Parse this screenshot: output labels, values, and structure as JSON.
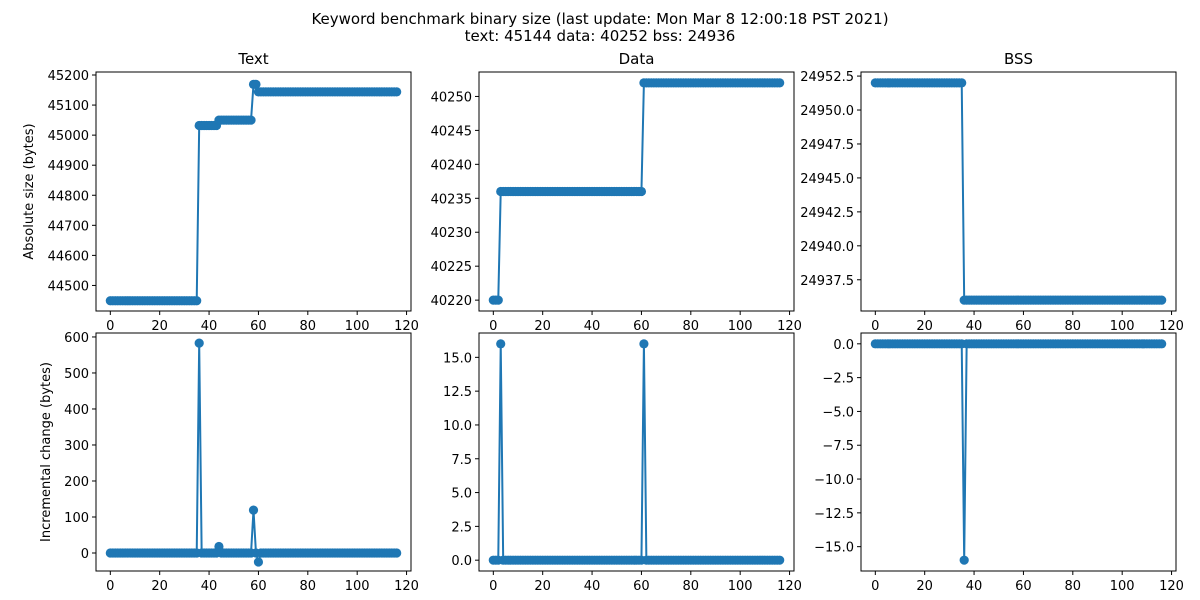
{
  "figure": {
    "title_line1": "Keyword benchmark binary size (last update: Mon Mar  8 12:00:18 PST 2021)",
    "title_line2": "text: 45144 data: 40252 bss: 24936"
  },
  "chart_data": [
    {
      "id": "text-absolute",
      "type": "line",
      "title": "Text",
      "xlabel": "",
      "ylabel": "Absolute size (bytes)",
      "xlim": [
        -5.8,
        121.8
      ],
      "ylim": [
        44415,
        45210
      ],
      "xticks": [
        0,
        20,
        40,
        60,
        80,
        100,
        120
      ],
      "yticks": [
        44500,
        44600,
        44700,
        44800,
        44900,
        45000,
        45100,
        45200
      ],
      "ytick_labels": [
        "44500",
        "44600",
        "44700",
        "44800",
        "44900",
        "45000",
        "45100",
        "45200"
      ],
      "grid": false,
      "segments": [
        {
          "from": 0,
          "to": 35,
          "value": 44449
        },
        {
          "from": 36,
          "to": 43,
          "value": 45032
        },
        {
          "from": 44,
          "to": 57,
          "value": 45050
        },
        {
          "from": 58,
          "to": 59,
          "value": 45169
        },
        {
          "from": 60,
          "to": 116,
          "value": 45144
        }
      ]
    },
    {
      "id": "data-absolute",
      "type": "line",
      "title": "Data",
      "xlabel": "",
      "ylabel": "",
      "xlim": [
        -5.8,
        121.8
      ],
      "ylim": [
        40218.4,
        40253.6
      ],
      "xticks": [
        0,
        20,
        40,
        60,
        80,
        100,
        120
      ],
      "yticks": [
        40220,
        40225,
        40230,
        40235,
        40240,
        40245,
        40250
      ],
      "ytick_labels": [
        "40220",
        "40225",
        "40230",
        "40235",
        "40240",
        "40245",
        "40250"
      ],
      "grid": false,
      "segments": [
        {
          "from": 0,
          "to": 2,
          "value": 40220
        },
        {
          "from": 3,
          "to": 60,
          "value": 40236
        },
        {
          "from": 61,
          "to": 116,
          "value": 40252
        }
      ]
    },
    {
      "id": "bss-absolute",
      "type": "line",
      "title": "BSS",
      "xlabel": "",
      "ylabel": "",
      "xlim": [
        -5.8,
        121.8
      ],
      "ylim": [
        24935.2,
        24952.8
      ],
      "xticks": [
        0,
        20,
        40,
        60,
        80,
        100,
        120
      ],
      "yticks": [
        24937.5,
        24940.0,
        24942.5,
        24945.0,
        24947.5,
        24950.0,
        24952.5
      ],
      "ytick_labels": [
        "24937.5",
        "24940.0",
        "24942.5",
        "24945.0",
        "24947.5",
        "24950.0",
        "24952.5"
      ],
      "grid": false,
      "segments": [
        {
          "from": 0,
          "to": 35,
          "value": 24952
        },
        {
          "from": 36,
          "to": 116,
          "value": 24936
        }
      ]
    },
    {
      "id": "text-incremental",
      "type": "line",
      "title": "",
      "xlabel": "",
      "ylabel": "Incremental change (bytes)",
      "xlim": [
        -5.8,
        121.8
      ],
      "ylim": [
        -50,
        611
      ],
      "xticks": [
        0,
        20,
        40,
        60,
        80,
        100,
        120
      ],
      "yticks": [
        0,
        100,
        200,
        300,
        400,
        500,
        600
      ],
      "ytick_labels": [
        "0",
        "100",
        "200",
        "300",
        "400",
        "500",
        "600"
      ],
      "grid": false,
      "base_value": 0,
      "length": 117,
      "changes": [
        {
          "x": 36,
          "value": 583
        },
        {
          "x": 44,
          "value": 18
        },
        {
          "x": 58,
          "value": 119
        },
        {
          "x": 60,
          "value": -25
        }
      ]
    },
    {
      "id": "data-incremental",
      "type": "line",
      "title": "",
      "xlabel": "",
      "ylabel": "",
      "xlim": [
        -5.8,
        121.8
      ],
      "ylim": [
        -0.8,
        16.8
      ],
      "xticks": [
        0,
        20,
        40,
        60,
        80,
        100,
        120
      ],
      "yticks": [
        0.0,
        2.5,
        5.0,
        7.5,
        10.0,
        12.5,
        15.0
      ],
      "ytick_labels": [
        "0.0",
        "2.5",
        "5.0",
        "7.5",
        "10.0",
        "12.5",
        "15.0"
      ],
      "grid": false,
      "base_value": 0,
      "length": 117,
      "changes": [
        {
          "x": 3,
          "value": 16
        },
        {
          "x": 61,
          "value": 16
        }
      ]
    },
    {
      "id": "bss-incremental",
      "type": "line",
      "title": "",
      "xlabel": "",
      "ylabel": "",
      "xlim": [
        -5.8,
        121.8
      ],
      "ylim": [
        -16.8,
        0.8
      ],
      "xticks": [
        0,
        20,
        40,
        60,
        80,
        100,
        120
      ],
      "yticks": [
        -15.0,
        -12.5,
        -10.0,
        -7.5,
        -5.0,
        -2.5,
        0.0
      ],
      "ytick_labels": [
        "−15.0",
        "−12.5",
        "−10.0",
        "−7.5",
        "−5.0",
        "−2.5",
        "0.0"
      ],
      "grid": false,
      "base_value": 0,
      "length": 117,
      "changes": [
        {
          "x": 36,
          "value": -16
        }
      ]
    }
  ],
  "style": {
    "series_color": "#1f77b4",
    "axis_color": "#000000",
    "background": "#ffffff"
  }
}
